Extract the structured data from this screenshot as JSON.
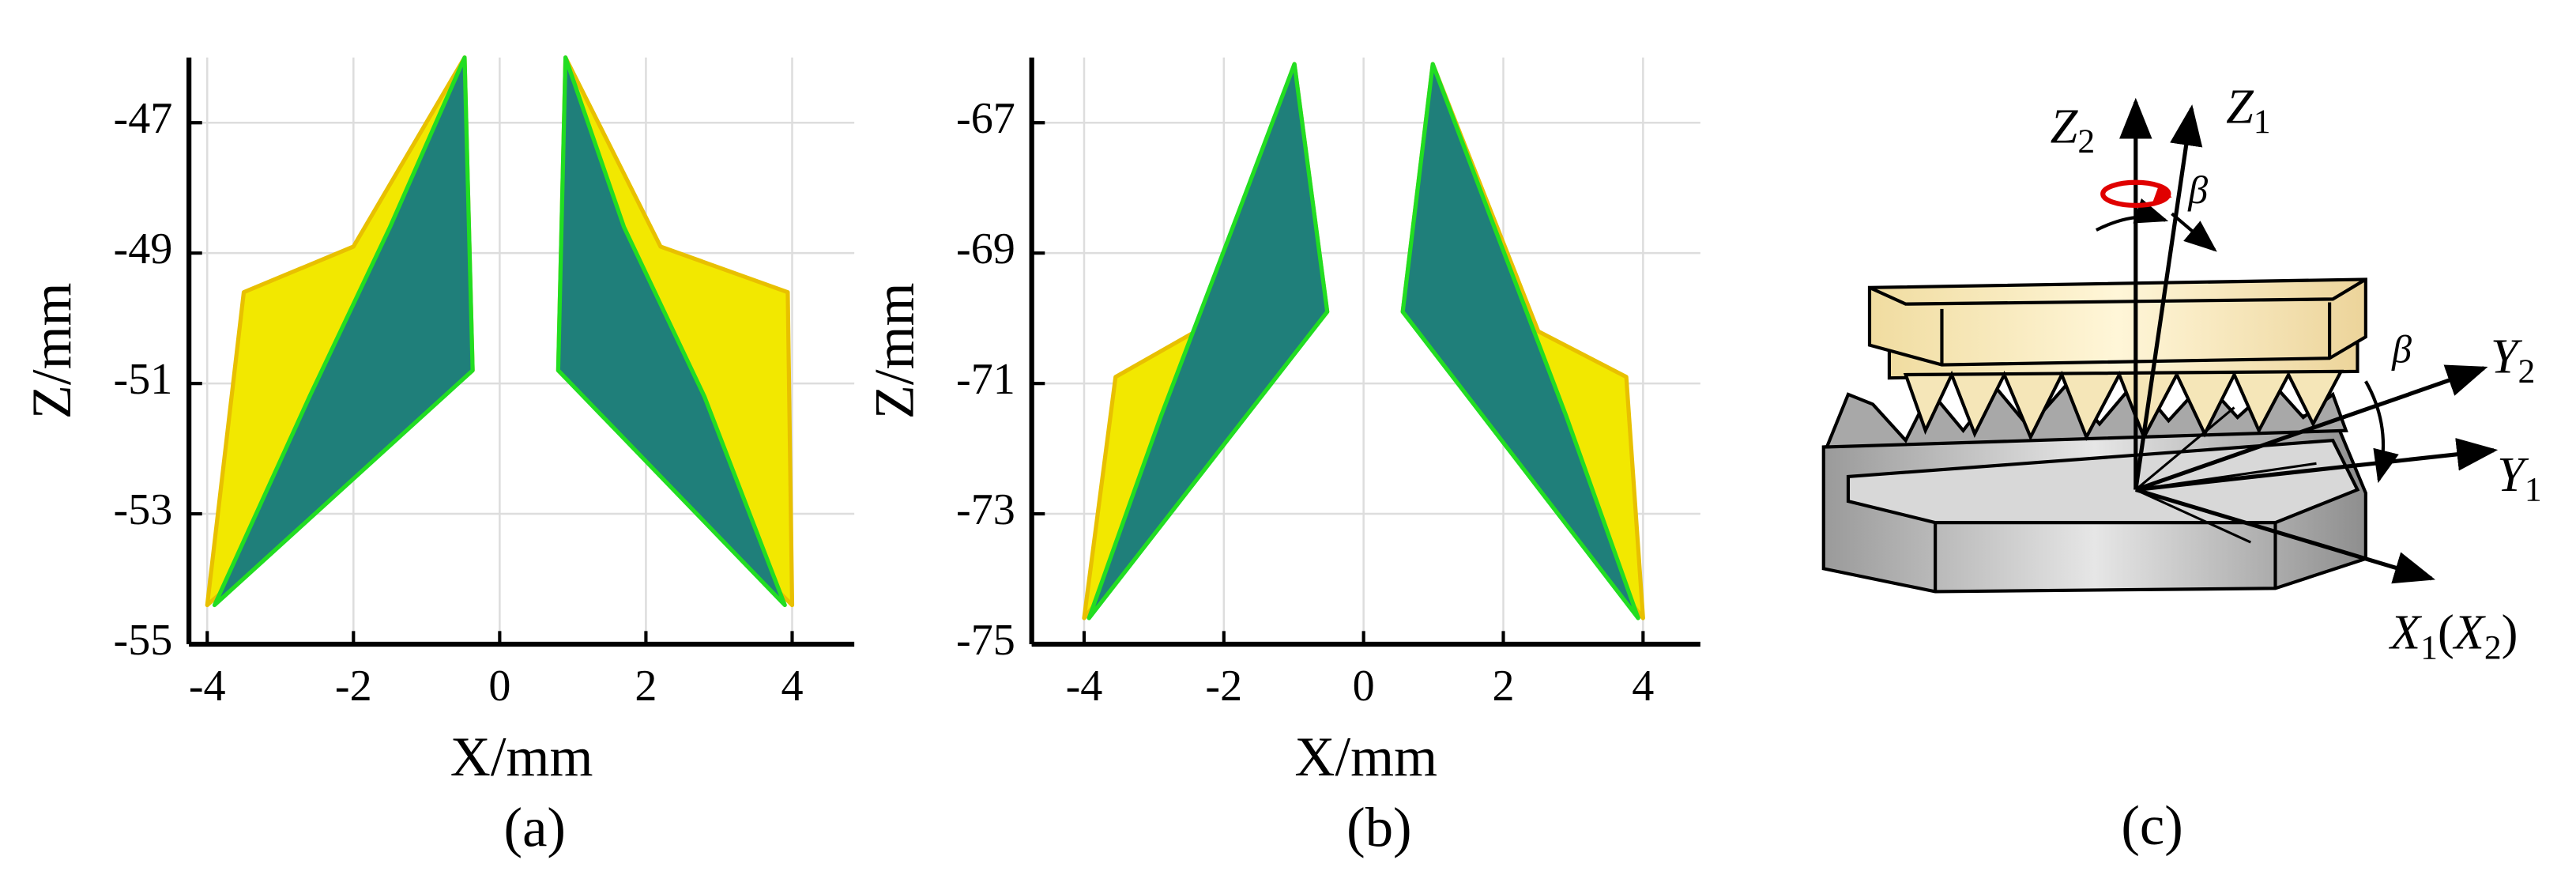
{
  "chart_data": [
    {
      "type": "surface",
      "xlabel": "X/mm",
      "ylabel": "Z/mm",
      "caption": "(a)",
      "xlim": [
        -4.25,
        4.85
      ],
      "ylim": [
        -55,
        -46
      ],
      "xticks": [
        -4,
        -2,
        0,
        2,
        4
      ],
      "yticks": [
        -55,
        -53,
        -51,
        -49,
        -47
      ],
      "grid": true,
      "series": [
        {
          "color": "#f2e800",
          "x": [
            -4.0,
            -3.5,
            -2.0,
            -0.48,
            -0.37
          ],
          "values": [
            -54.4,
            -49.6,
            -48.9,
            -46,
            -50.8
          ]
        },
        {
          "color": "#1f7f7a",
          "x": [
            -0.48,
            -0.37,
            -3.9,
            -2.6,
            -1.5
          ],
          "values": [
            -46,
            -50.8,
            -54.4,
            -51.2,
            -48.6
          ]
        },
        {
          "color": "#f2e800",
          "x": [
            4.0,
            3.94,
            2.2,
            0.9,
            0.8
          ],
          "values": [
            -54.4,
            -49.6,
            -48.9,
            -46,
            -50.8
          ]
        },
        {
          "color": "#1f7f7a",
          "x": [
            0.9,
            0.8,
            3.9,
            2.8,
            1.7
          ],
          "values": [
            -46,
            -50.8,
            -54.4,
            -51.2,
            -48.6
          ]
        }
      ]
    },
    {
      "type": "surface",
      "xlabel": "X/mm",
      "ylabel": "Z/mm",
      "caption": "(b)",
      "xlim": [
        -4.75,
        4.82
      ],
      "ylim": [
        -75,
        -66
      ],
      "xticks": [
        -4,
        -2,
        0,
        2,
        4
      ],
      "yticks": [
        -75,
        -73,
        -71,
        -69,
        -67
      ],
      "grid": true,
      "series": [
        {
          "color": "#f2e800",
          "x": [
            -4.0,
            -3.55,
            -2.4,
            -0.99,
            -0.52
          ],
          "values": [
            -74.6,
            -70.9,
            -70.2,
            -66.1,
            -69.9
          ]
        },
        {
          "color": "#1f7f7a",
          "x": [
            -0.99,
            -0.52,
            -3.93,
            -2.9,
            -1.8
          ],
          "values": [
            -66.1,
            -69.9,
            -74.6,
            -71.5,
            -68.4
          ]
        },
        {
          "color": "#f2e800",
          "x": [
            4.0,
            3.76,
            2.5,
            0.99,
            0.56
          ],
          "values": [
            -74.6,
            -70.9,
            -70.2,
            -66.1,
            -69.9
          ]
        },
        {
          "color": "#1f7f7a",
          "x": [
            0.99,
            0.56,
            3.93,
            2.9,
            1.8
          ],
          "values": [
            -66.1,
            -69.9,
            -74.6,
            -71.5,
            -68.4
          ]
        }
      ]
    }
  ],
  "diagram": {
    "caption": "(c)",
    "z2": [
      "Z",
      "2"
    ],
    "z1": [
      "Z",
      "1"
    ],
    "beta_top": "β",
    "beta_side": "β",
    "y2": [
      "Y",
      "2"
    ],
    "y1": [
      "Y",
      "1"
    ],
    "x1x2": [
      "X",
      "1",
      "(",
      "X",
      "2",
      ")"
    ]
  }
}
